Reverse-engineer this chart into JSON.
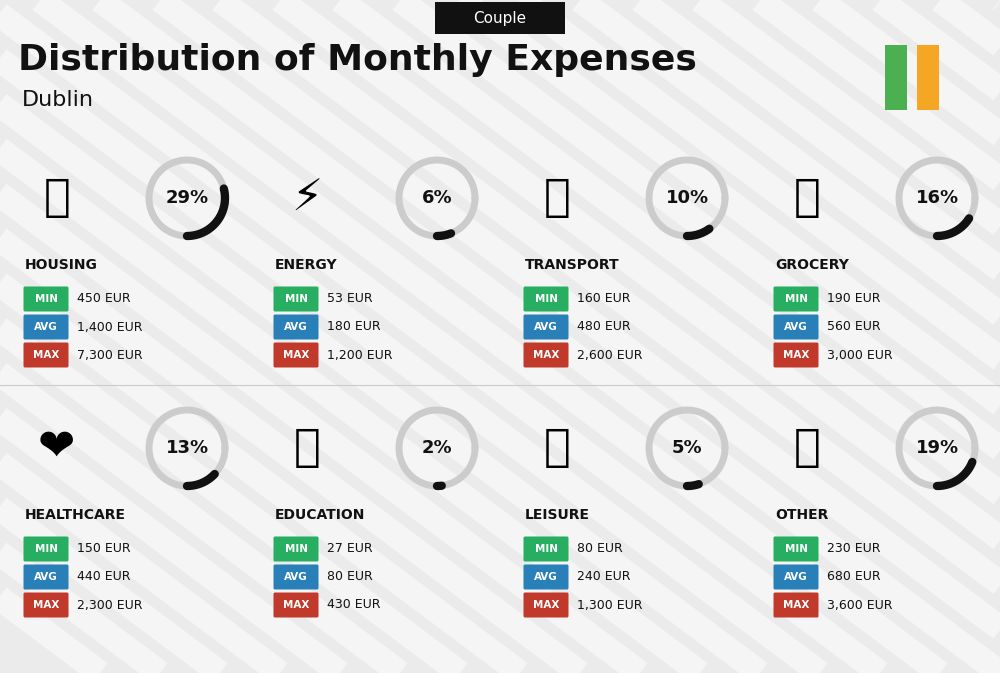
{
  "title": "Distribution of Monthly Expenses",
  "subtitle": "Dublin",
  "header_label": "Couple",
  "bg_color": "#ebebeb",
  "flag_green": "#4caf50",
  "flag_orange": "#f5a623",
  "categories": [
    {
      "name": "HOUSING",
      "pct": 29,
      "min": "450 EUR",
      "avg": "1,400 EUR",
      "max": "7,300 EUR",
      "icon": "🏙",
      "row": 0,
      "col": 0
    },
    {
      "name": "ENERGY",
      "pct": 6,
      "min": "53 EUR",
      "avg": "180 EUR",
      "max": "1,200 EUR",
      "icon": "⚡",
      "row": 0,
      "col": 1
    },
    {
      "name": "TRANSPORT",
      "pct": 10,
      "min": "160 EUR",
      "avg": "480 EUR",
      "max": "2,600 EUR",
      "icon": "🚌",
      "row": 0,
      "col": 2
    },
    {
      "name": "GROCERY",
      "pct": 16,
      "min": "190 EUR",
      "avg": "560 EUR",
      "max": "3,000 EUR",
      "icon": "🛒",
      "row": 0,
      "col": 3
    },
    {
      "name": "HEALTHCARE",
      "pct": 13,
      "min": "150 EUR",
      "avg": "440 EUR",
      "max": "2,300 EUR",
      "icon": "❤️",
      "row": 1,
      "col": 0
    },
    {
      "name": "EDUCATION",
      "pct": 2,
      "min": "27 EUR",
      "avg": "80 EUR",
      "max": "430 EUR",
      "icon": "🎓",
      "row": 1,
      "col": 1
    },
    {
      "name": "LEISURE",
      "pct": 5,
      "min": "80 EUR",
      "avg": "240 EUR",
      "max": "1,300 EUR",
      "icon": "🛍",
      "row": 1,
      "col": 2
    },
    {
      "name": "OTHER",
      "pct": 19,
      "min": "230 EUR",
      "avg": "680 EUR",
      "max": "3,600 EUR",
      "icon": "👛",
      "row": 1,
      "col": 3
    }
  ],
  "min_color": "#27ae60",
  "avg_color": "#2980b9",
  "max_color": "#c0392b",
  "text_color": "#111111",
  "circle_bg_color": "#cccccc",
  "circle_fg_color": "#111111",
  "stripe_color": "#ffffff"
}
